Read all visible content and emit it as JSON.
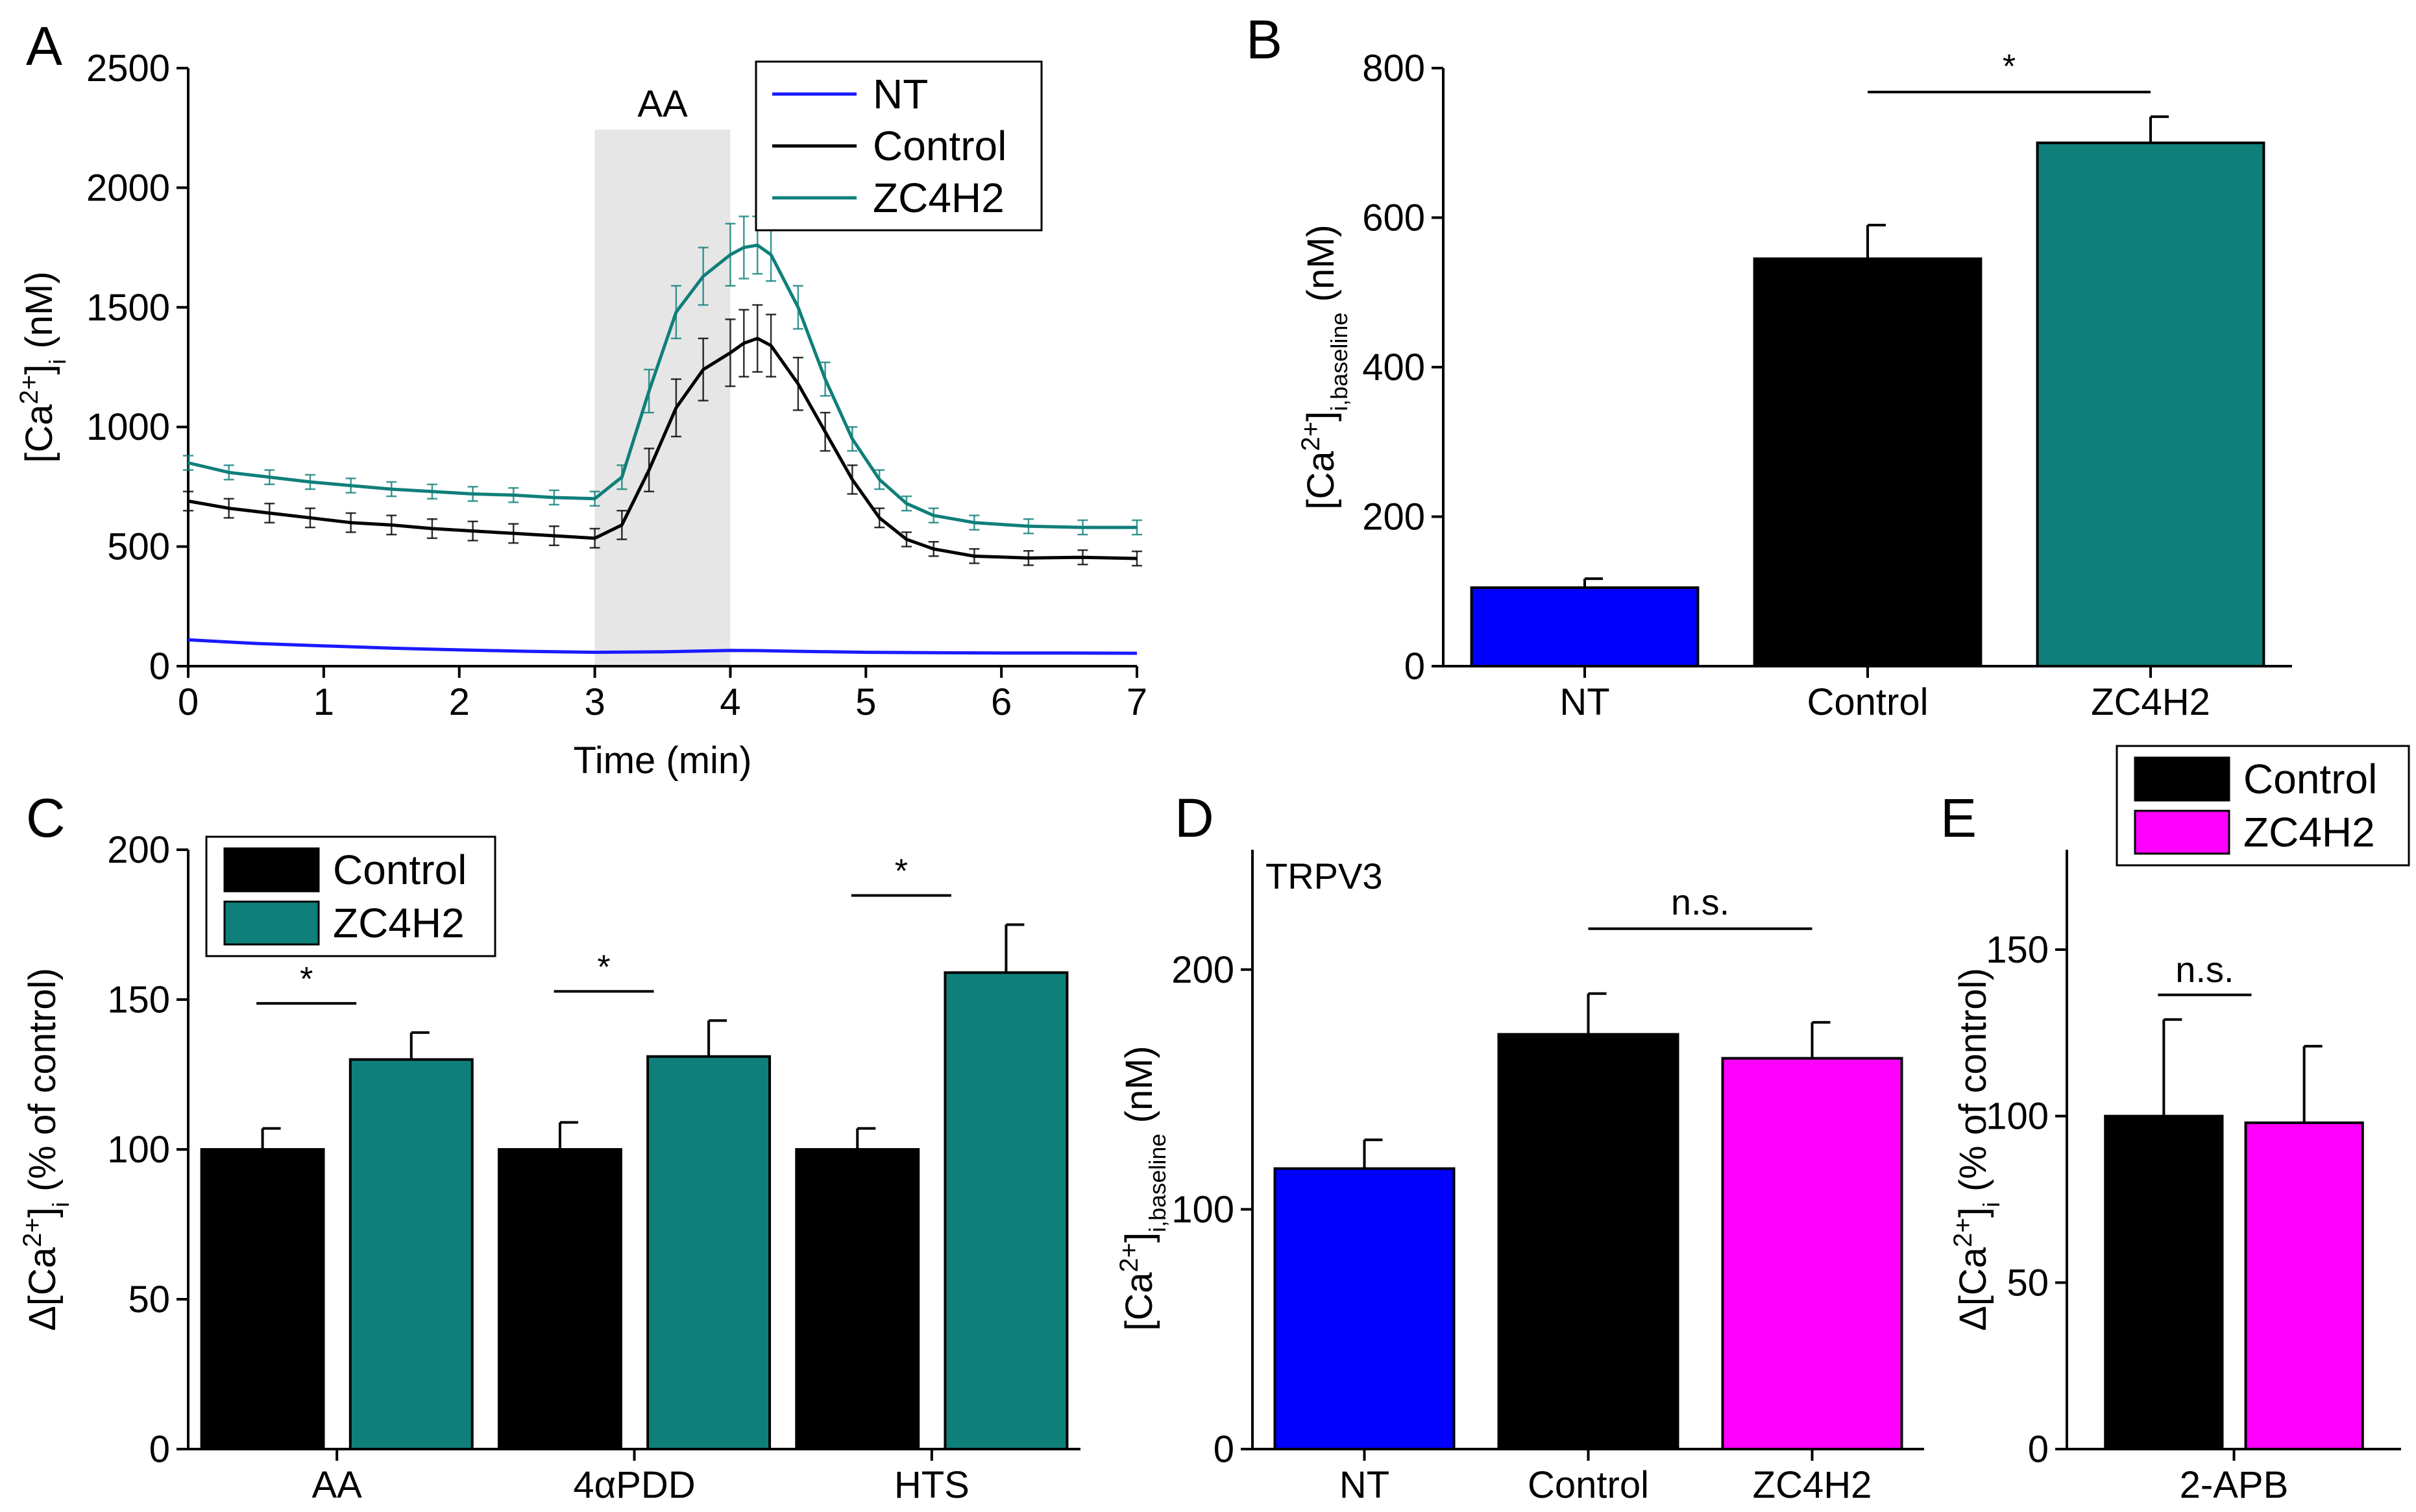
{
  "figure": {
    "title": ""
  },
  "chart_data": [
    {
      "panel": "A",
      "type": "line",
      "xlabel": "Time (min)",
      "ylabel": "[Ca2+]i (nM)",
      "ylabel_main": "[Ca",
      "ylabel_sup": "2+",
      "ylabel_close": "]",
      "ylabel_sub": "i",
      "ylabel_unit": " (nM)",
      "xlim": [
        0,
        7
      ],
      "ylim": [
        0,
        2500
      ],
      "xticks": [
        0,
        1,
        2,
        3,
        4,
        5,
        6,
        7
      ],
      "yticks": [
        0,
        500,
        1000,
        1500,
        2000,
        2500
      ],
      "shaded_region": {
        "x": [
          3,
          4
        ],
        "label": "AA"
      },
      "legend": [
        {
          "name": "NT",
          "color": "#1a1aff"
        },
        {
          "name": "Control",
          "color": "#000000"
        },
        {
          "name": "ZC4H2",
          "color": "#0f7f7a"
        }
      ],
      "series": [
        {
          "name": "NT",
          "color": "#1a1aff",
          "x": [
            0,
            0.5,
            1,
            1.5,
            2,
            2.5,
            3,
            3.5,
            4,
            4.2,
            4.5,
            5,
            5.5,
            6,
            6.5,
            7
          ],
          "y": [
            110,
            95,
            85,
            75,
            68,
            62,
            58,
            60,
            66,
            65,
            62,
            58,
            56,
            55,
            55,
            54
          ]
        },
        {
          "name": "Control",
          "color": "#000000",
          "x": [
            0,
            0.3,
            0.6,
            0.9,
            1.2,
            1.5,
            1.8,
            2.1,
            2.4,
            2.7,
            3.0,
            3.2,
            3.4,
            3.6,
            3.8,
            4.0,
            4.1,
            4.2,
            4.3,
            4.5,
            4.7,
            4.9,
            5.1,
            5.3,
            5.5,
            5.8,
            6.2,
            6.6,
            7.0
          ],
          "y": [
            690,
            660,
            640,
            620,
            600,
            590,
            575,
            565,
            555,
            545,
            535,
            590,
            820,
            1080,
            1240,
            1310,
            1350,
            1370,
            1340,
            1180,
            980,
            780,
            620,
            530,
            490,
            460,
            452,
            455,
            450
          ],
          "err": [
            40,
            40,
            40,
            40,
            40,
            40,
            40,
            40,
            40,
            40,
            40,
            60,
            90,
            120,
            130,
            140,
            140,
            140,
            130,
            110,
            80,
            60,
            40,
            30,
            30,
            30,
            30,
            30,
            30
          ]
        },
        {
          "name": "ZC4H2",
          "color": "#0f7f7a",
          "x": [
            0,
            0.3,
            0.6,
            0.9,
            1.2,
            1.5,
            1.8,
            2.1,
            2.4,
            2.7,
            3.0,
            3.2,
            3.4,
            3.6,
            3.8,
            4.0,
            4.1,
            4.2,
            4.3,
            4.5,
            4.7,
            4.9,
            5.1,
            5.3,
            5.5,
            5.8,
            6.2,
            6.6,
            7.0
          ],
          "y": [
            850,
            810,
            790,
            770,
            755,
            740,
            730,
            720,
            715,
            705,
            700,
            790,
            1150,
            1480,
            1630,
            1720,
            1750,
            1760,
            1720,
            1500,
            1200,
            950,
            780,
            680,
            630,
            600,
            585,
            580,
            580
          ],
          "err": [
            30,
            30,
            30,
            30,
            30,
            30,
            30,
            30,
            30,
            30,
            30,
            50,
            90,
            110,
            120,
            130,
            130,
            120,
            110,
            90,
            70,
            50,
            40,
            30,
            30,
            30,
            30,
            30,
            30
          ]
        }
      ]
    },
    {
      "panel": "B",
      "type": "bar",
      "categories": [
        "NT",
        "Control",
        "ZC4H2"
      ],
      "values": [
        105,
        545,
        700
      ],
      "errors": [
        12,
        45,
        35
      ],
      "colors": [
        "#0000ff",
        "#000000",
        "#0f7f7a"
      ],
      "ylim": [
        0,
        800
      ],
      "yticks": [
        0,
        200,
        400,
        600,
        800
      ],
      "ylabel_main": "[Ca",
      "ylabel_sup": "2+",
      "ylabel_close": "]",
      "ylabel_sub": "i,baseline",
      "ylabel_unit": " (nM)",
      "significance": [
        {
          "from": 1,
          "to": 2,
          "label": "*"
        }
      ]
    },
    {
      "panel": "C",
      "type": "bar",
      "categories": [
        "AA",
        "4αPDD",
        "HTS"
      ],
      "series": [
        {
          "name": "Control",
          "values": [
            100,
            100,
            100
          ],
          "errors": [
            7,
            9,
            7
          ],
          "color": "#000000"
        },
        {
          "name": "ZC4H2",
          "values": [
            130,
            131,
            159
          ],
          "errors": [
            9,
            12,
            16
          ],
          "color": "#0f7f7a"
        }
      ],
      "ylim": [
        0,
        200
      ],
      "yticks": [
        0,
        50,
        100,
        150,
        200
      ],
      "ylabel_main": "Δ[Ca",
      "ylabel_sup": "2+",
      "ylabel_close": "]",
      "ylabel_sub": "i",
      "ylabel_unit": " (% of control)",
      "legend": [
        {
          "name": "Control",
          "color": "#000000"
        },
        {
          "name": "ZC4H2",
          "color": "#0f7f7a"
        }
      ],
      "significance": [
        {
          "group": 0,
          "label": "*"
        },
        {
          "group": 1,
          "label": "*"
        },
        {
          "group": 2,
          "label": "*"
        }
      ]
    },
    {
      "panel": "D",
      "type": "bar",
      "annotation": "TRPV3",
      "categories": [
        "NT",
        "Control",
        "ZC4H2"
      ],
      "values": [
        117,
        173,
        163
      ],
      "errors": [
        12,
        17,
        15
      ],
      "colors": [
        "#0000ff",
        "#000000",
        "#ff00ff"
      ],
      "ylim": [
        0,
        250
      ],
      "yticks": [
        0,
        100,
        200
      ],
      "ylabel_main": "[Ca",
      "ylabel_sup": "2+",
      "ylabel_close": "]",
      "ylabel_sub": "i,baseline",
      "ylabel_unit": " (nM)",
      "significance": [
        {
          "from": 1,
          "to": 2,
          "label": "n.s."
        }
      ]
    },
    {
      "panel": "E",
      "type": "bar",
      "categories": [
        "2-APB"
      ],
      "series": [
        {
          "name": "Control",
          "values": [
            100
          ],
          "errors": [
            29
          ],
          "color": "#000000"
        },
        {
          "name": "ZC4H2",
          "values": [
            98
          ],
          "errors": [
            23
          ],
          "color": "#ff00ff"
        }
      ],
      "ylim": [
        0,
        180
      ],
      "yticks": [
        0,
        50,
        100,
        150
      ],
      "ylabel_main": "Δ[Ca",
      "ylabel_sup": "2+",
      "ylabel_close": "]",
      "ylabel_sub": "i",
      "ylabel_unit": " (% of control)",
      "legend": [
        {
          "name": "Control",
          "color": "#000000"
        },
        {
          "name": "ZC4H2",
          "color": "#ff00ff"
        }
      ],
      "significance": [
        {
          "group": 0,
          "label": "n.s."
        }
      ]
    }
  ]
}
